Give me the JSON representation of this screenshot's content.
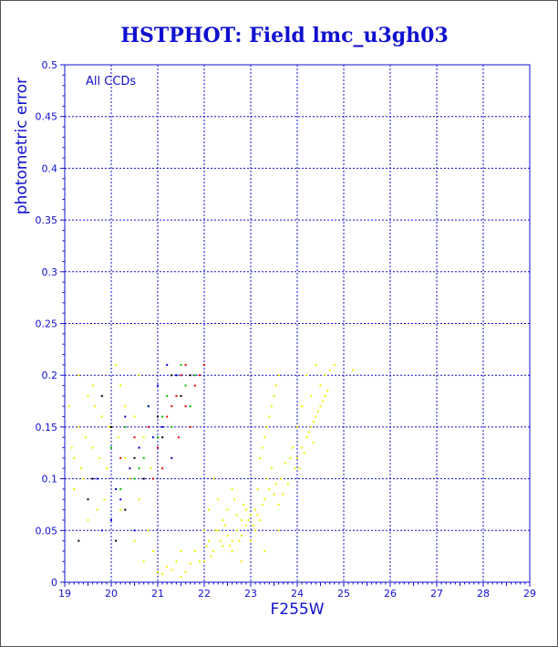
{
  "chart_data": {
    "type": "scatter",
    "title": "HSTPHOT: Field lmc_u3gh03",
    "xlabel": "F255W",
    "ylabel": "photometric error",
    "annotation": "All CCDs",
    "xlim": [
      19,
      29
    ],
    "ylim": [
      0,
      0.5
    ],
    "xticks": [
      19,
      20,
      21,
      22,
      23,
      24,
      25,
      26,
      27,
      28,
      29
    ],
    "yticks": [
      0,
      0.05,
      0.1,
      0.15,
      0.2,
      0.25,
      0.3,
      0.35,
      0.4,
      0.45,
      0.5
    ],
    "x_tick_labels": [
      "19",
      "20",
      "21",
      "22",
      "23",
      "24",
      "25",
      "26",
      "27",
      "28",
      "29"
    ],
    "y_tick_labels": [
      "0",
      "0.05",
      "0.1",
      "0.15",
      "0.2",
      "0.25",
      "0.3",
      "0.35",
      "0.4",
      "0.45",
      "0.5"
    ],
    "grid": true,
    "colors": {
      "axis": "#1010d0",
      "grid": "#1010d0",
      "yellow": "#f0f000",
      "green": "#00c000",
      "red": "#e00000",
      "blue": "#0000d0",
      "black": "#000000"
    },
    "series": [
      {
        "color": "yellow",
        "points": [
          [
            19.1,
            0.17
          ],
          [
            19.2,
            0.12
          ],
          [
            19.3,
            0.15
          ],
          [
            19.4,
            0.1
          ],
          [
            19.5,
            0.18
          ],
          [
            19.6,
            0.13
          ],
          [
            19.2,
            0.09
          ],
          [
            19.7,
            0.07
          ],
          [
            19.8,
            0.16
          ],
          [
            19.9,
            0.11
          ],
          [
            19.3,
            0.2
          ],
          [
            19.6,
            0.19
          ],
          [
            19.45,
            0.14
          ],
          [
            19.75,
            0.12
          ],
          [
            19.85,
            0.08
          ],
          [
            19.5,
            0.06
          ],
          [
            19.95,
            0.15
          ],
          [
            19.15,
            0.13
          ],
          [
            19.35,
            0.11
          ],
          [
            19.65,
            0.17
          ],
          [
            20.1,
            0.21
          ],
          [
            20.2,
            0.19
          ],
          [
            20.3,
            0.12
          ],
          [
            20.5,
            0.16
          ],
          [
            20.7,
            0.14
          ],
          [
            20.4,
            0.1
          ],
          [
            20.6,
            0.08
          ],
          [
            20.8,
            0.05
          ],
          [
            20.9,
            0.03
          ],
          [
            20.2,
            0.07
          ],
          [
            20.5,
            0.04
          ],
          [
            20.7,
            0.02
          ],
          [
            20.3,
            0.17
          ],
          [
            20.6,
            0.2
          ],
          [
            20.85,
            0.11
          ],
          [
            20.15,
            0.14
          ],
          [
            21.0,
            0.01
          ],
          [
            21.2,
            0.015
          ],
          [
            21.4,
            0.02
          ],
          [
            21.6,
            0.01
          ],
          [
            21.8,
            0.03
          ],
          [
            21.9,
            0.02
          ],
          [
            21.5,
            0.005
          ],
          [
            21.1,
            0.008
          ],
          [
            21.3,
            0.012
          ],
          [
            21.7,
            0.018
          ],
          [
            22.0,
            0.02
          ],
          [
            22.1,
            0.04
          ],
          [
            22.2,
            0.03
          ],
          [
            22.3,
            0.05
          ],
          [
            22.4,
            0.035
          ],
          [
            22.5,
            0.045
          ],
          [
            22.1,
            0.07
          ],
          [
            22.3,
            0.08
          ],
          [
            22.2,
            0.1
          ],
          [
            22.4,
            0.06
          ],
          [
            22.6,
            0.04
          ],
          [
            22.7,
            0.05
          ],
          [
            22.8,
            0.06
          ],
          [
            22.6,
            0.03
          ],
          [
            22.5,
            0.07
          ],
          [
            22.7,
            0.065
          ],
          [
            22.9,
            0.055
          ],
          [
            22.8,
            0.045
          ],
          [
            22.9,
            0.07
          ],
          [
            22.65,
            0.08
          ],
          [
            22.55,
            0.035
          ],
          [
            22.75,
            0.04
          ],
          [
            22.85,
            0.075
          ],
          [
            22.95,
            0.06
          ],
          [
            22.45,
            0.055
          ],
          [
            22.35,
            0.04
          ],
          [
            22.15,
            0.025
          ],
          [
            22.25,
            0.05
          ],
          [
            22.05,
            0.035
          ],
          [
            22.6,
            0.09
          ],
          [
            23.0,
            0.065
          ],
          [
            23.1,
            0.07
          ],
          [
            23.2,
            0.06
          ],
          [
            23.3,
            0.08
          ],
          [
            23.4,
            0.09
          ],
          [
            23.5,
            0.085
          ],
          [
            23.15,
            0.09
          ],
          [
            23.25,
            0.075
          ],
          [
            23.35,
            0.1
          ],
          [
            23.45,
            0.11
          ],
          [
            23.55,
            0.095
          ],
          [
            23.05,
            0.055
          ],
          [
            23.2,
            0.12
          ],
          [
            23.3,
            0.14
          ],
          [
            23.4,
            0.16
          ],
          [
            23.5,
            0.18
          ],
          [
            23.6,
            0.2
          ],
          [
            23.25,
            0.13
          ],
          [
            23.35,
            0.15
          ],
          [
            23.45,
            0.17
          ],
          [
            23.55,
            0.19
          ],
          [
            23.65,
            0.1
          ],
          [
            23.75,
            0.115
          ],
          [
            23.85,
            0.12
          ],
          [
            23.9,
            0.13
          ],
          [
            23.7,
            0.085
          ],
          [
            23.8,
            0.095
          ],
          [
            23.1,
            0.05
          ],
          [
            23.0,
            0.04
          ],
          [
            23.6,
            0.075
          ],
          [
            23.95,
            0.11
          ],
          [
            23.15,
            0.065
          ],
          [
            24.0,
            0.12
          ],
          [
            24.1,
            0.13
          ],
          [
            24.2,
            0.14
          ],
          [
            24.3,
            0.15
          ],
          [
            24.4,
            0.16
          ],
          [
            24.5,
            0.17
          ],
          [
            24.6,
            0.18
          ],
          [
            24.05,
            0.11
          ],
          [
            24.15,
            0.125
          ],
          [
            24.25,
            0.145
          ],
          [
            24.35,
            0.155
          ],
          [
            24.45,
            0.165
          ],
          [
            24.55,
            0.175
          ],
          [
            24.2,
            0.2
          ],
          [
            24.4,
            0.21
          ],
          [
            24.5,
            0.19
          ],
          [
            24.3,
            0.18
          ],
          [
            24.1,
            0.17
          ],
          [
            24.0,
            0.15
          ],
          [
            24.6,
            0.2
          ],
          [
            24.7,
            0.205
          ],
          [
            24.8,
            0.21
          ],
          [
            25.2,
            0.205
          ],
          [
            24.35,
            0.135
          ],
          [
            24.65,
            0.185
          ],
          [
            22.0,
            0.05
          ],
          [
            21.5,
            0.03
          ],
          [
            23.3,
            0.03
          ],
          [
            22.8,
            0.02
          ],
          [
            23.6,
            0.05
          ]
        ]
      },
      {
        "color": "green",
        "points": [
          [
            20.0,
            0.13
          ],
          [
            20.3,
            0.15
          ],
          [
            20.5,
            0.1
          ],
          [
            20.8,
            0.17
          ],
          [
            21.0,
            0.14
          ],
          [
            21.2,
            0.18
          ],
          [
            21.4,
            0.2
          ],
          [
            21.6,
            0.19
          ],
          [
            20.7,
            0.12
          ],
          [
            21.5,
            0.21
          ],
          [
            21.8,
            0.2
          ],
          [
            20.2,
            0.09
          ],
          [
            21.1,
            0.16
          ],
          [
            21.3,
            0.15
          ],
          [
            20.6,
            0.11
          ],
          [
            21.7,
            0.17
          ]
        ]
      },
      {
        "color": "red",
        "points": [
          [
            20.2,
            0.12
          ],
          [
            20.5,
            0.14
          ],
          [
            20.8,
            0.15
          ],
          [
            21.0,
            0.13
          ],
          [
            21.2,
            0.16
          ],
          [
            21.4,
            0.18
          ],
          [
            21.6,
            0.17
          ],
          [
            21.8,
            0.19
          ],
          [
            22.0,
            0.21
          ],
          [
            21.5,
            0.2
          ],
          [
            21.3,
            0.17
          ],
          [
            21.1,
            0.11
          ],
          [
            20.9,
            0.1
          ],
          [
            21.7,
            0.15
          ],
          [
            21.9,
            0.2
          ],
          [
            21.6,
            0.21
          ],
          [
            20.6,
            0.13
          ],
          [
            21.45,
            0.14
          ]
        ]
      },
      {
        "color": "blue",
        "points": [
          [
            19.7,
            0.1
          ],
          [
            20.0,
            0.06
          ],
          [
            20.2,
            0.08
          ],
          [
            20.4,
            0.11
          ],
          [
            20.6,
            0.13
          ],
          [
            20.8,
            0.17
          ],
          [
            21.0,
            0.19
          ],
          [
            21.2,
            0.21
          ],
          [
            21.4,
            0.2
          ],
          [
            20.5,
            0.05
          ],
          [
            20.3,
            0.16
          ],
          [
            21.1,
            0.15
          ],
          [
            20.9,
            0.14
          ],
          [
            19.8,
            0.05
          ],
          [
            20.1,
            0.09
          ],
          [
            21.3,
            0.12
          ]
        ]
      },
      {
        "color": "black",
        "points": [
          [
            19.3,
            0.04
          ],
          [
            19.5,
            0.08
          ],
          [
            19.8,
            0.18
          ],
          [
            20.0,
            0.15
          ],
          [
            20.3,
            0.07
          ],
          [
            20.7,
            0.1
          ],
          [
            21.0,
            0.16
          ],
          [
            21.3,
            0.2
          ],
          [
            21.5,
            0.18
          ],
          [
            21.7,
            0.2
          ],
          [
            20.5,
            0.12
          ],
          [
            21.1,
            0.14
          ],
          [
            19.6,
            0.1
          ],
          [
            20.1,
            0.04
          ]
        ]
      }
    ]
  }
}
